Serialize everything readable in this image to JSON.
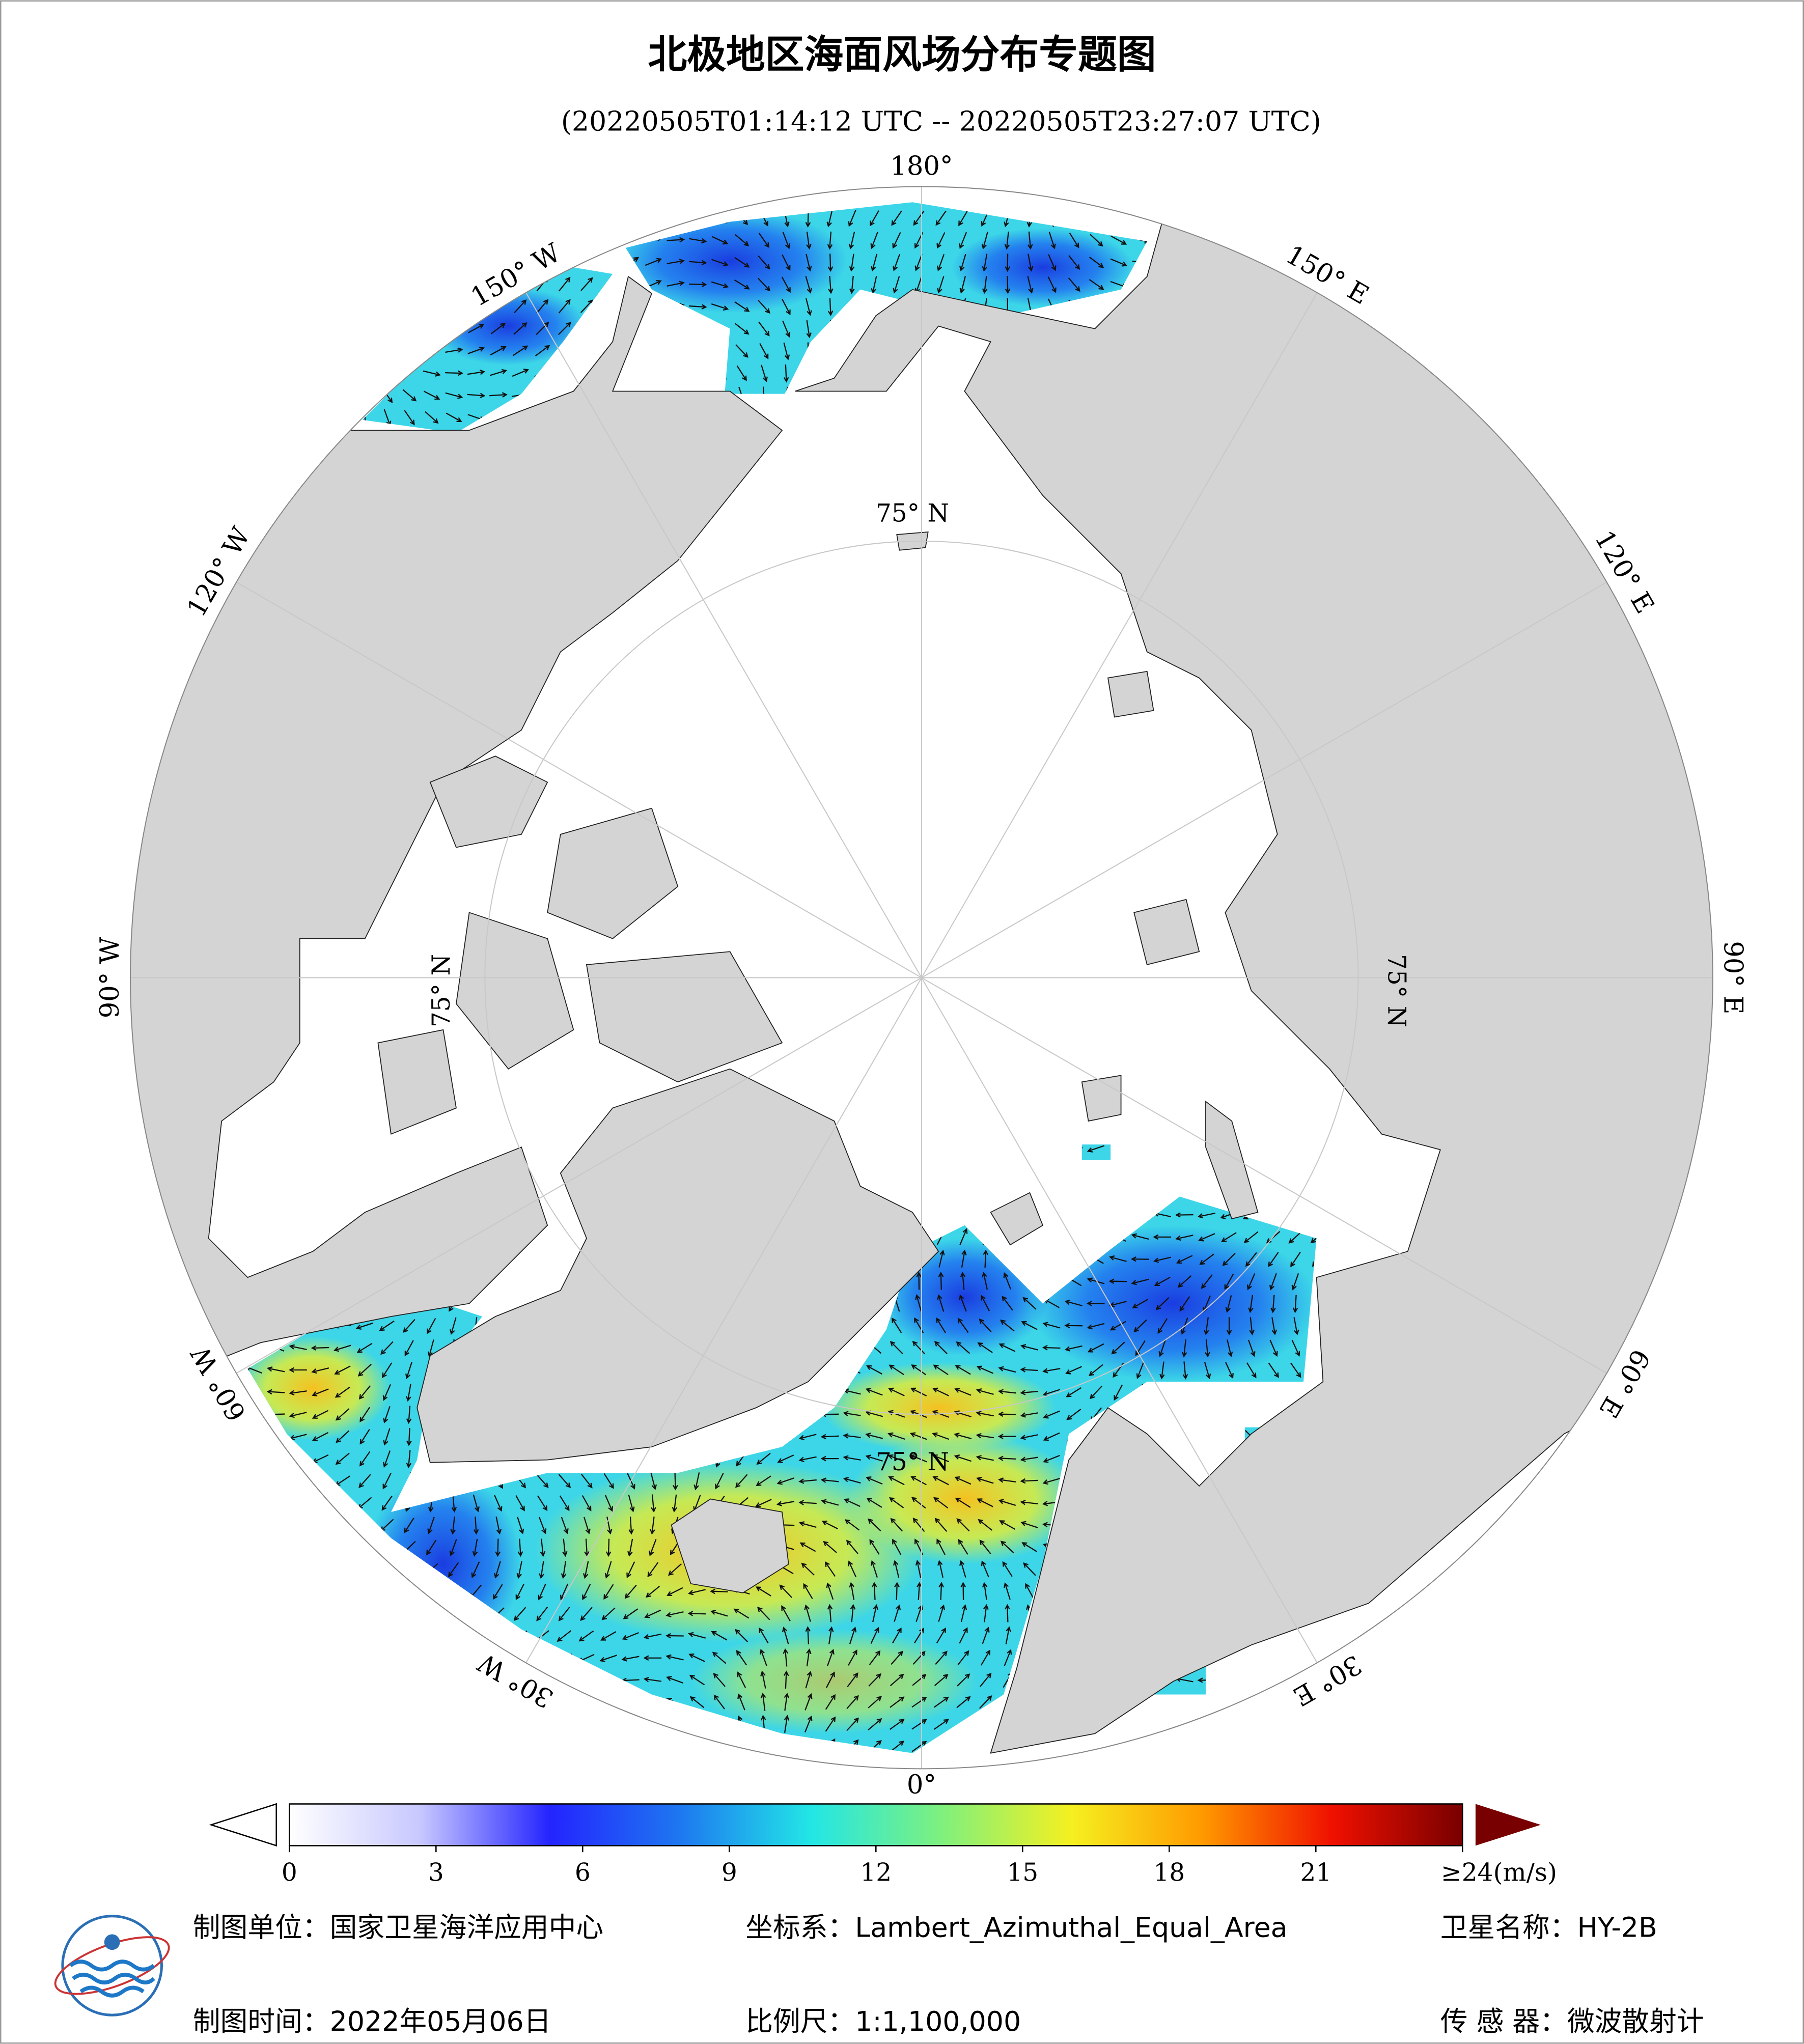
{
  "header": {
    "title": "北极地区海面风场分布专题图",
    "subtitle": "(20220505T01:14:12 UTC -- 20220505T23:27:07 UTC)"
  },
  "map": {
    "longitude_labels": [
      "180°",
      "150° E",
      "120° E",
      "90° E",
      "60° E",
      "30° E",
      "0°",
      "30° W",
      "60° W",
      "90° W",
      "120° W",
      "150° W"
    ],
    "latitude_label": "75° N"
  },
  "colorbar": {
    "range": [
      0,
      24
    ],
    "ticks": [
      0,
      3,
      6,
      9,
      12,
      15,
      18,
      21,
      {
        "value": 24,
        "label": "≥24(m/s)"
      }
    ],
    "colors": [
      "#ffffff",
      "#c8c8ff",
      "#2424ff",
      "#1e78f0",
      "#22e6e6",
      "#7ef07e",
      "#f5f020",
      "#ff9a00",
      "#f01000",
      "#780000"
    ]
  },
  "footer": {
    "unit": "制图单位：国家卫星海洋应用中心",
    "projection": "坐标系：Lambert_Azimuthal_Equal_Area",
    "satellite": "卫星名称：HY-2B",
    "date": "制图时间：2022年05月06日",
    "scale": "比例尺：1:1,100,000",
    "sensor": "传 感 器：微波散射计"
  }
}
